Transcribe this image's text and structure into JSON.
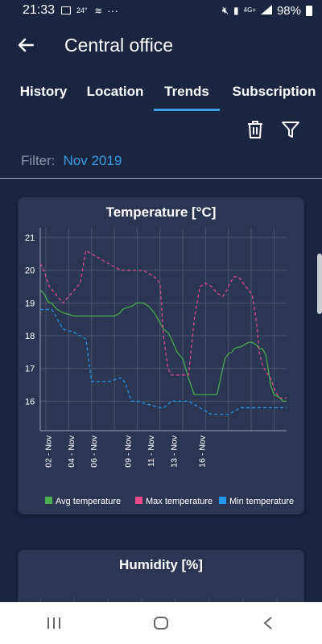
{
  "status_bar": {
    "time": "21:33",
    "temp_badge": "24°",
    "dots": "···",
    "network": "4G+",
    "battery": "98%"
  },
  "app_bar": {
    "title": "Central office"
  },
  "tabs": [
    {
      "label": "History",
      "active": false
    },
    {
      "label": "Location",
      "active": false
    },
    {
      "label": "Trends",
      "active": true
    },
    {
      "label": "Subscription",
      "active": false
    }
  ],
  "filter": {
    "label": "Filter:",
    "value": "Nov 2019"
  },
  "colors": {
    "accent": "#3b9fe3",
    "avg": "#4caf50",
    "max": "#e84b8a",
    "min": "#2196f3"
  },
  "chart_data": [
    {
      "type": "line",
      "title": "Temperature [°C]",
      "ylim": [
        15.1,
        21
      ],
      "y_ticks": [
        "21",
        "20",
        "19",
        "18",
        "17",
        "16"
      ],
      "x_ticks": [
        "02 - Nov",
        "04 - Nov",
        "06 - Nov",
        "09 - Nov",
        "11 - Nov",
        "13 - Nov",
        "16 - Nov"
      ],
      "grid": true,
      "legend_placement": "bottom",
      "x": [
        0,
        0.3,
        0.6,
        0.8,
        1,
        1.2,
        1.5,
        2,
        2.5,
        3,
        3.5,
        4,
        4.5,
        5,
        5.5,
        6,
        6.5,
        6.8,
        7,
        7.2,
        7.5,
        8,
        8.5,
        9,
        9.5,
        10,
        10.5,
        10.8,
        11,
        11.2,
        11.5,
        12,
        12.5,
        13,
        13.5,
        14,
        14.5,
        15,
        15.5,
        16,
        16.2,
        16.5,
        16.8,
        17,
        17.3,
        17.5,
        17.8,
        18,
        18.3,
        18.6,
        18.8,
        19,
        19.2,
        19.5,
        19.8,
        20.2,
        20.5,
        20.8,
        21,
        21.3,
        21.6
      ],
      "series": [
        {
          "name": "Avg temperature",
          "color": "#4caf50",
          "values": [
            19.4,
            19.3,
            19.1,
            19.0,
            19.0,
            18.9,
            18.8,
            18.7,
            18.65,
            18.6,
            18.6,
            18.6,
            18.6,
            18.6,
            18.6,
            18.6,
            18.6,
            18.65,
            18.7,
            18.8,
            18.85,
            18.9,
            19.0,
            19.0,
            18.9,
            18.7,
            18.4,
            18.2,
            18.15,
            18.1,
            17.9,
            17.5,
            17.3,
            16.7,
            16.2,
            16.2,
            16.2,
            16.2,
            16.2,
            17.0,
            17.3,
            17.45,
            17.5,
            17.6,
            17.65,
            17.65,
            17.7,
            17.75,
            17.8,
            17.8,
            17.75,
            17.7,
            17.6,
            17.6,
            17.4,
            16.5,
            16.2,
            16.15,
            16.1,
            16.0,
            16.0
          ]
        },
        {
          "name": "Max temperature",
          "color": "#e84b8a",
          "values": [
            20.2,
            20.0,
            19.7,
            19.5,
            19.4,
            19.35,
            19.2,
            19.0,
            19.2,
            19.4,
            19.6,
            20.6,
            20.5,
            20.4,
            20.3,
            20.2,
            20.1,
            20.05,
            20.0,
            20.0,
            20.0,
            20.0,
            20.0,
            20.0,
            19.9,
            19.8,
            19.6,
            18.0,
            17.5,
            17.0,
            16.8,
            16.8,
            16.8,
            16.8,
            18.5,
            19.5,
            19.6,
            19.5,
            19.3,
            19.2,
            19.3,
            19.5,
            19.7,
            19.8,
            19.8,
            19.75,
            19.6,
            19.5,
            19.4,
            19.2,
            18.8,
            18.3,
            17.5,
            17.1,
            16.9,
            16.7,
            16.4,
            16.2,
            16.1,
            16.1,
            16.1
          ]
        },
        {
          "name": "Min temperature",
          "color": "#2196f3",
          "values": [
            18.8,
            18.8,
            18.8,
            18.8,
            18.8,
            18.7,
            18.5,
            18.2,
            18.15,
            18.1,
            18.0,
            17.9,
            16.6,
            16.6,
            16.6,
            16.6,
            16.65,
            16.7,
            16.7,
            16.7,
            16.5,
            16.0,
            16.0,
            15.95,
            15.9,
            15.85,
            15.8,
            15.8,
            15.85,
            15.9,
            16.0,
            16.0,
            16.0,
            16.0,
            15.9,
            15.8,
            15.7,
            15.6,
            15.6,
            15.6,
            15.6,
            15.6,
            15.65,
            15.7,
            15.75,
            15.8,
            15.8,
            15.8,
            15.8,
            15.8,
            15.8,
            15.8,
            15.8,
            15.8,
            15.8,
            15.8,
            15.8,
            15.8,
            15.8,
            15.8,
            15.8
          ]
        }
      ]
    },
    {
      "type": "line",
      "title": "Humidity [%]"
    }
  ],
  "nav_bar": {
    "recent_icon": "recent-apps-icon",
    "home_icon": "home-icon",
    "back_icon": "back-icon"
  }
}
